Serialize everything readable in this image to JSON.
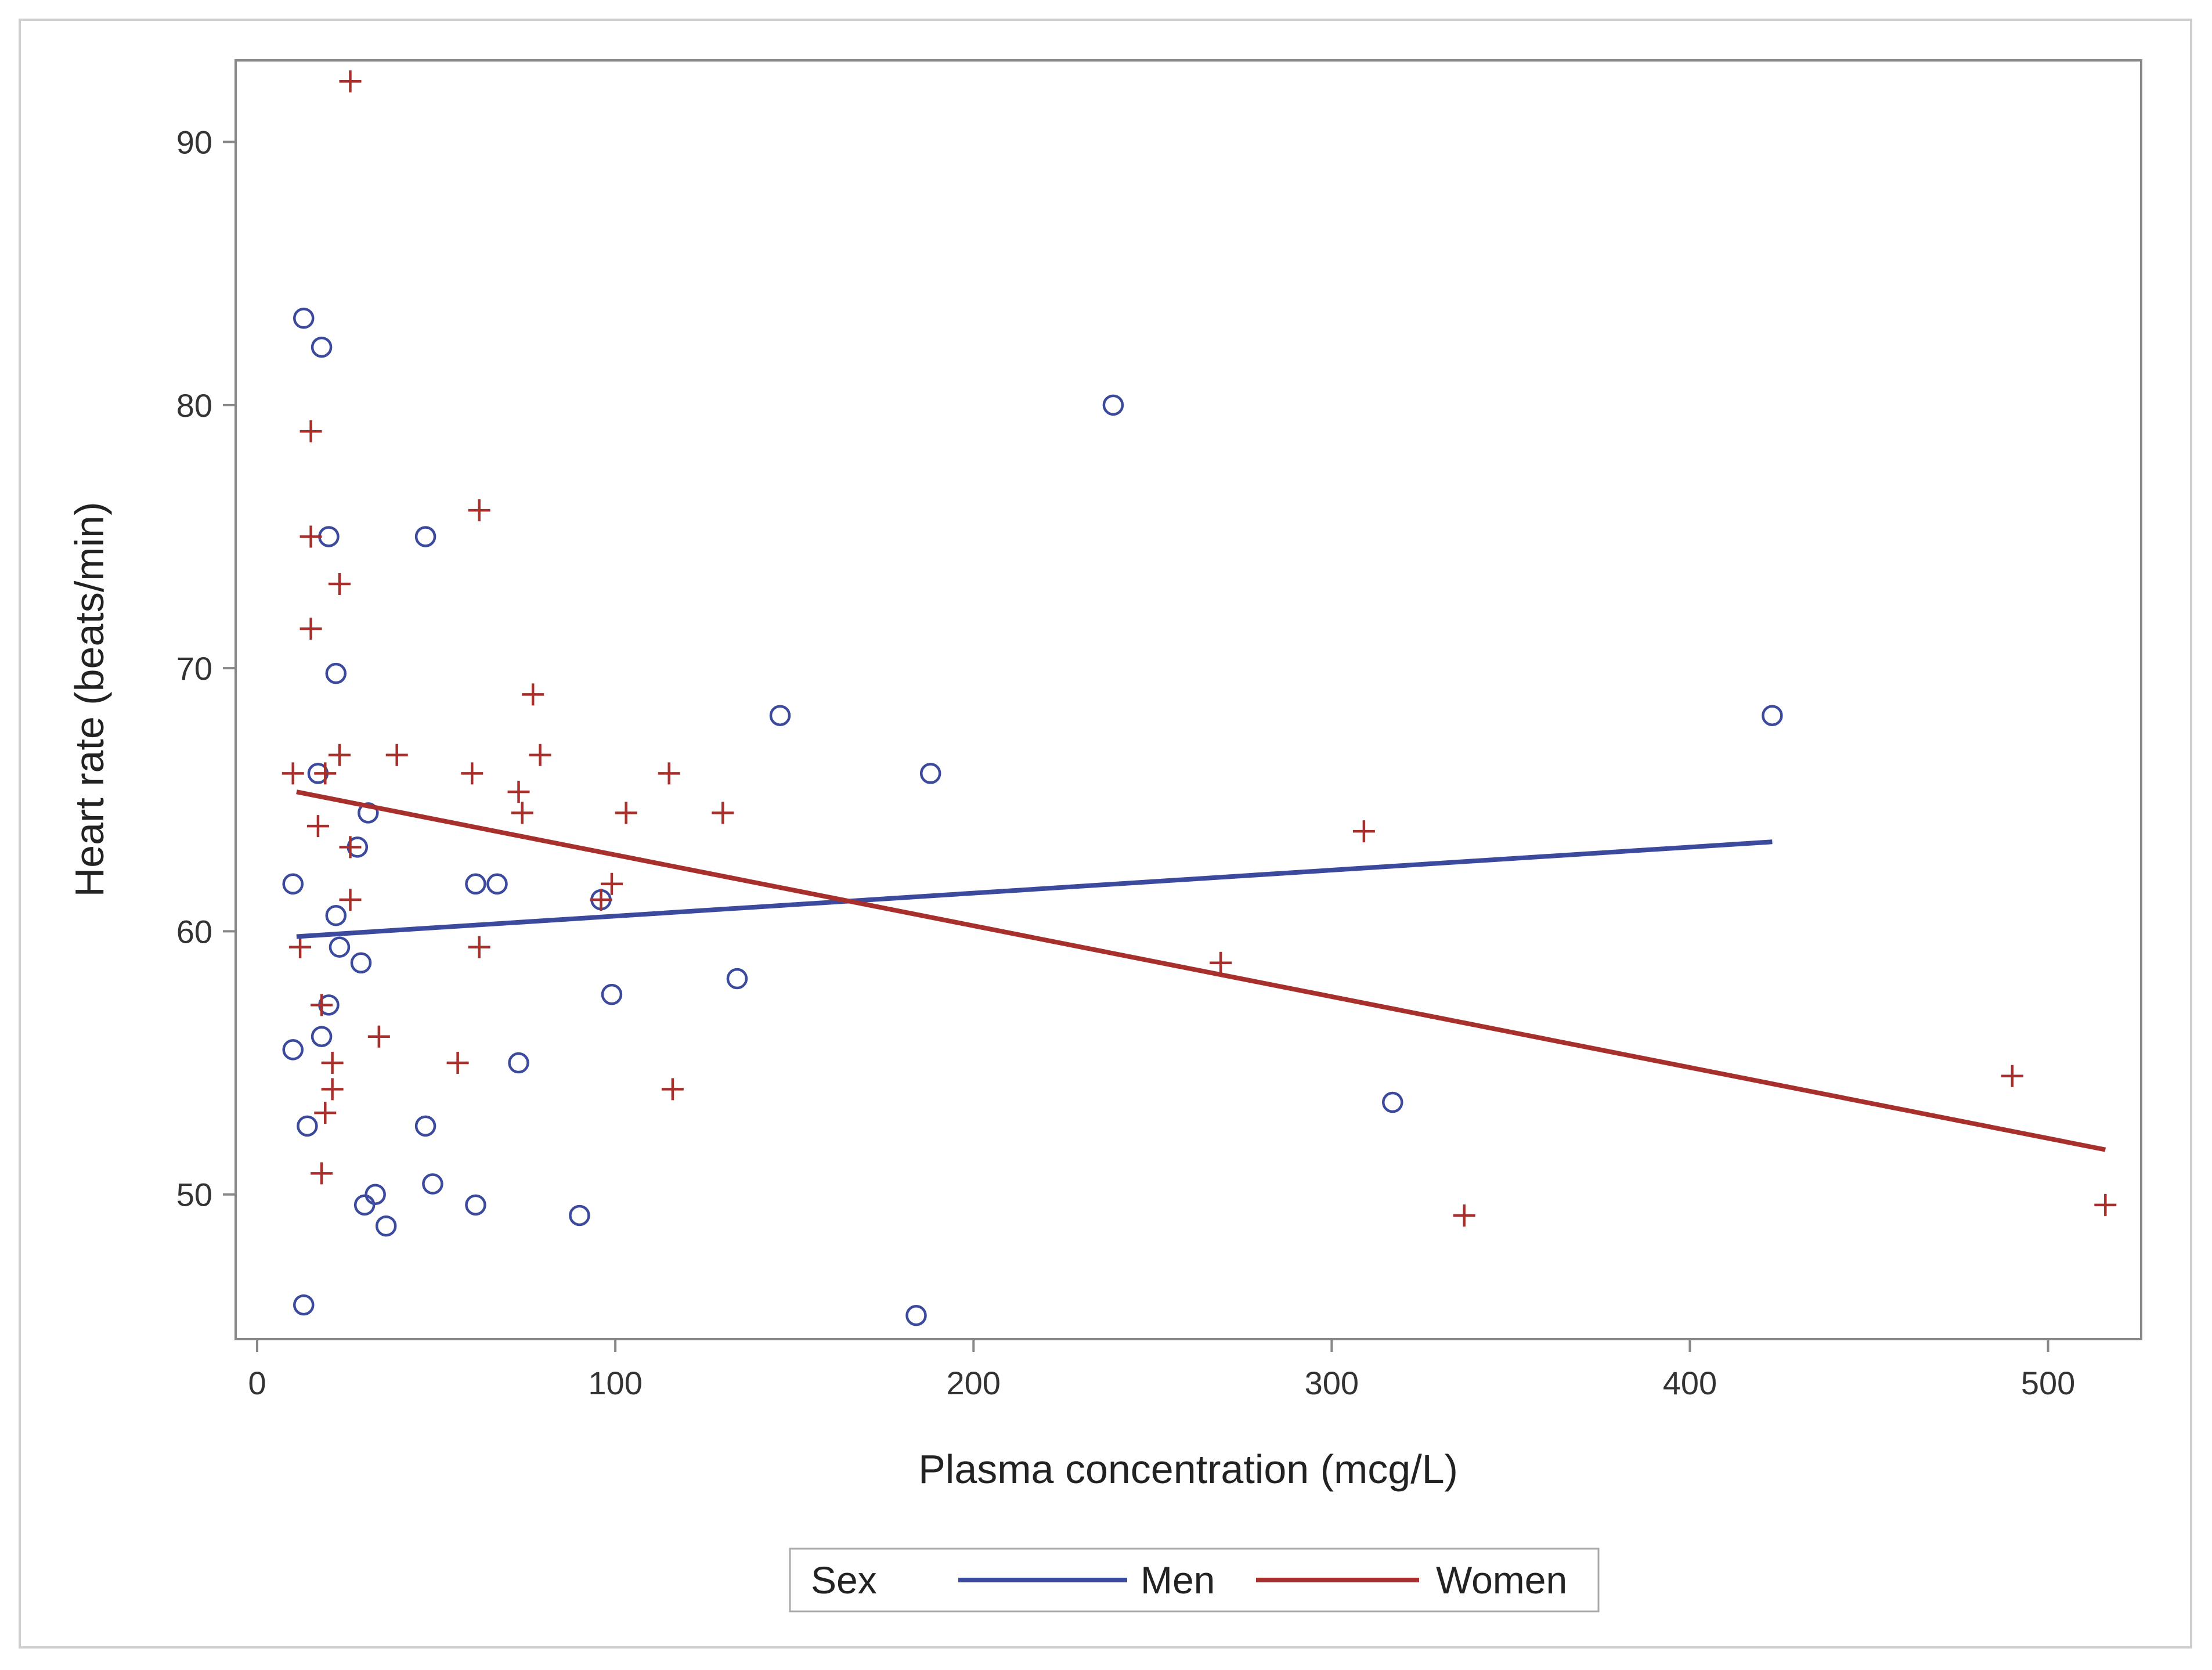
{
  "chart_data": {
    "type": "scatter",
    "title": "",
    "xlabel": "Plasma concentration (mcg/L)",
    "ylabel": "Heart rate (beats/min)",
    "xlim": [
      -6,
      526
    ],
    "ylim": [
      44.5,
      93.1
    ],
    "xticks": [
      0,
      100,
      200,
      300,
      400,
      500
    ],
    "yticks": [
      50,
      60,
      70,
      80,
      90
    ],
    "grid": false,
    "legend": {
      "title": "Sex",
      "placement": "bottom",
      "entries": [
        "Men",
        "Women"
      ]
    },
    "series": [
      {
        "name": "Men",
        "color": "#3b4a9c",
        "marker": "circle",
        "points": [
          [
            13,
            83.3
          ],
          [
            18,
            82.2
          ],
          [
            239,
            80
          ],
          [
            20,
            75
          ],
          [
            47,
            75
          ],
          [
            22,
            69.8
          ],
          [
            146,
            68.2
          ],
          [
            423,
            68.2
          ],
          [
            188,
            66
          ],
          [
            17,
            66
          ],
          [
            31,
            64.5
          ],
          [
            28,
            63.2
          ],
          [
            10,
            61.8
          ],
          [
            61,
            61.8
          ],
          [
            67,
            61.8
          ],
          [
            96,
            61.2
          ],
          [
            22,
            60.6
          ],
          [
            23,
            59.4
          ],
          [
            29,
            58.8
          ],
          [
            134,
            58.2
          ],
          [
            99,
            57.6
          ],
          [
            20,
            57.2
          ],
          [
            18,
            56
          ],
          [
            10,
            55.5
          ],
          [
            73,
            55
          ],
          [
            317,
            53.5
          ],
          [
            14,
            52.6
          ],
          [
            47,
            52.6
          ],
          [
            49,
            50.4
          ],
          [
            33,
            50
          ],
          [
            30,
            49.6
          ],
          [
            61,
            49.6
          ],
          [
            90,
            49.2
          ],
          [
            36,
            48.8
          ],
          [
            13,
            45.8
          ],
          [
            184,
            45.4
          ]
        ],
        "fit": {
          "x": [
            11,
            423
          ],
          "y": [
            59.8,
            63.4
          ]
        }
      },
      {
        "name": "Women",
        "color": "#a8302c",
        "marker": "plus",
        "points": [
          [
            26,
            92.3
          ],
          [
            15,
            79
          ],
          [
            62,
            76
          ],
          [
            15,
            75
          ],
          [
            23,
            73.2
          ],
          [
            15,
            71.5
          ],
          [
            77,
            69
          ],
          [
            23,
            66.7
          ],
          [
            39,
            66.7
          ],
          [
            79,
            66.7
          ],
          [
            10,
            66
          ],
          [
            19,
            66
          ],
          [
            60,
            66
          ],
          [
            115,
            66
          ],
          [
            73,
            65.3
          ],
          [
            74,
            64.5
          ],
          [
            103,
            64.5
          ],
          [
            130,
            64.5
          ],
          [
            17,
            64
          ],
          [
            309,
            63.8
          ],
          [
            26,
            63.2
          ],
          [
            99,
            61.8
          ],
          [
            96,
            61.2
          ],
          [
            26,
            61.2
          ],
          [
            12,
            59.4
          ],
          [
            62,
            59.4
          ],
          [
            269,
            58.8
          ],
          [
            18,
            57.2
          ],
          [
            34,
            56
          ],
          [
            21,
            55
          ],
          [
            56,
            55
          ],
          [
            490,
            54.5
          ],
          [
            21,
            54
          ],
          [
            116,
            54
          ],
          [
            19,
            53.1
          ],
          [
            18,
            50.8
          ],
          [
            516,
            49.6
          ],
          [
            337,
            49.2
          ]
        ],
        "fit": {
          "x": [
            11,
            516
          ],
          "y": [
            65.3,
            51.7
          ]
        }
      }
    ]
  }
}
